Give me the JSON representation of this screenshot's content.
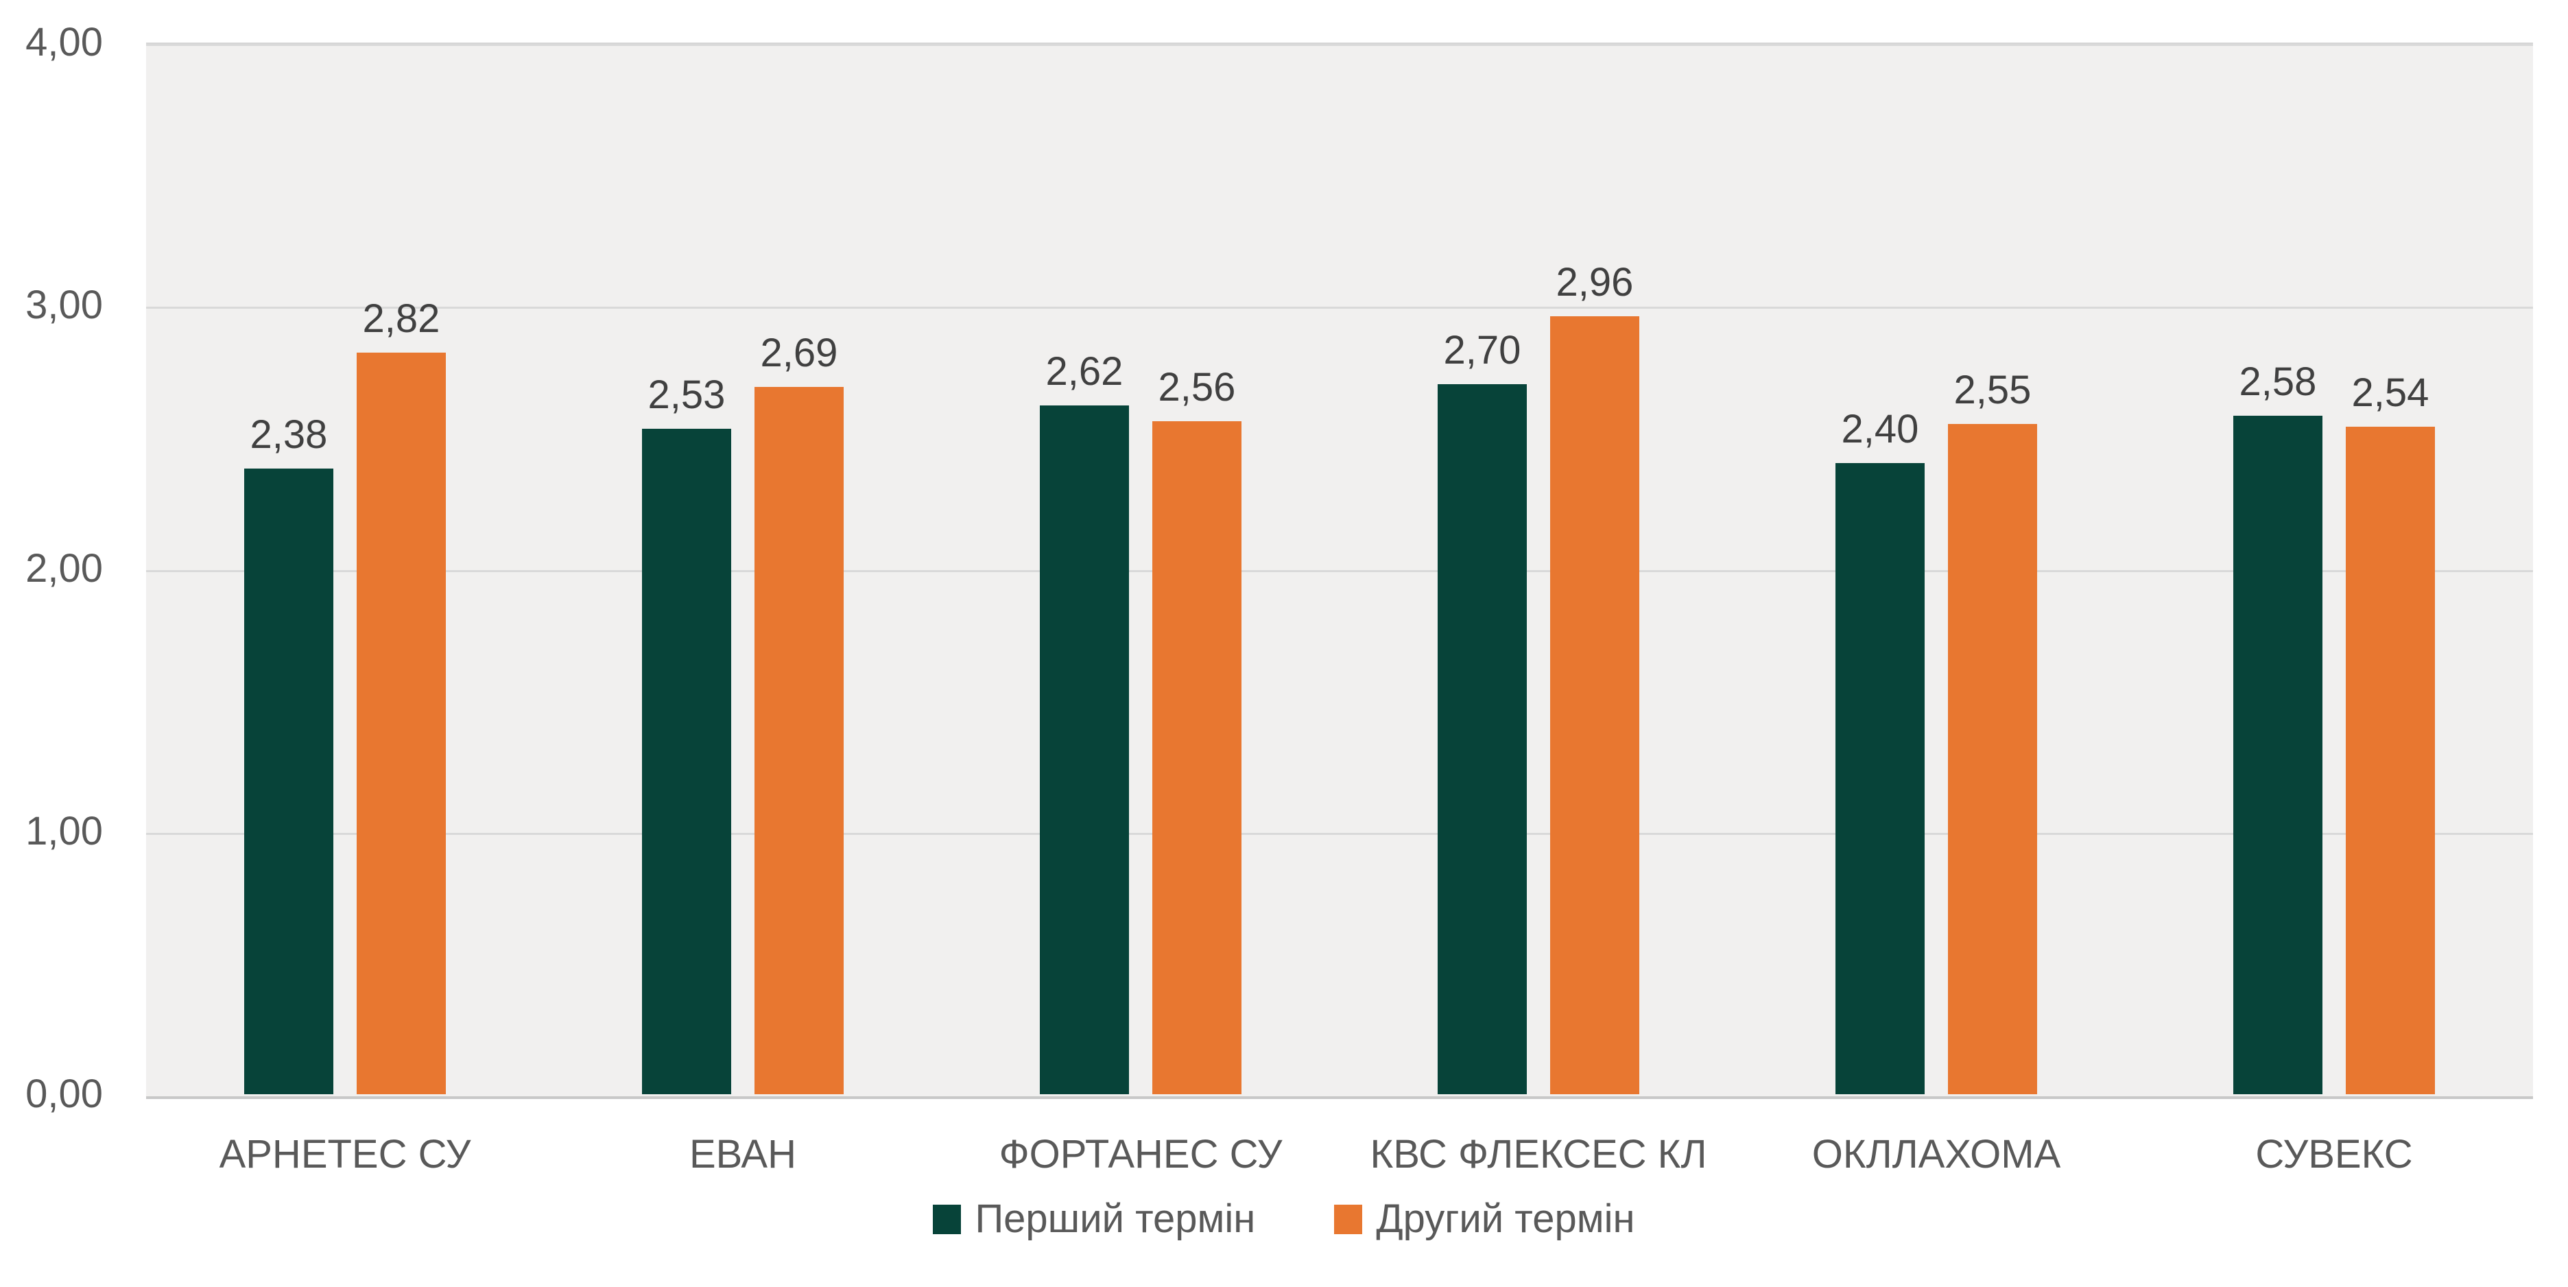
{
  "chart_data": {
    "type": "bar",
    "title": "",
    "categories": [
      "АРНЕТЕС СУ",
      "ЕВАН",
      "ФОРТАНЕС СУ",
      "КВС ФЛЕКСЕС КЛ",
      "ОКЛЛАХОМА",
      "СУВЕКС"
    ],
    "series": [
      {
        "name": "Перший термін",
        "color": "#074339",
        "values": [
          2.38,
          2.53,
          2.62,
          2.7,
          2.4,
          2.58
        ],
        "labels": [
          "2,38",
          "2,53",
          "2,62",
          "2,70",
          "2,40",
          "2,58"
        ]
      },
      {
        "name": "Другий термін",
        "color": "#E87730",
        "values": [
          2.82,
          2.69,
          2.56,
          2.96,
          2.55,
          2.54
        ],
        "labels": [
          "2,82",
          "2,69",
          "2,56",
          "2,96",
          "2,55",
          "2,54"
        ]
      }
    ],
    "xlabel": "",
    "ylabel": "",
    "ylim": [
      0,
      4
    ],
    "yticks": [
      {
        "value": 4,
        "label": "4,00"
      },
      {
        "value": 3,
        "label": "3,00"
      },
      {
        "value": 2,
        "label": "2,00"
      },
      {
        "value": 1,
        "label": "1,00"
      },
      {
        "value": 0,
        "label": "0,00"
      }
    ],
    "grid": true,
    "legend_position": "bottom",
    "decimal_separator": ",",
    "colors": {
      "plot_bg": "#F1F0EF",
      "gridline": "#D9D9D9",
      "baseline": "#C8C8C8",
      "axis_text": "#595959",
      "data_label_text": "#404040",
      "page_bg": "#FFFFFF"
    }
  }
}
